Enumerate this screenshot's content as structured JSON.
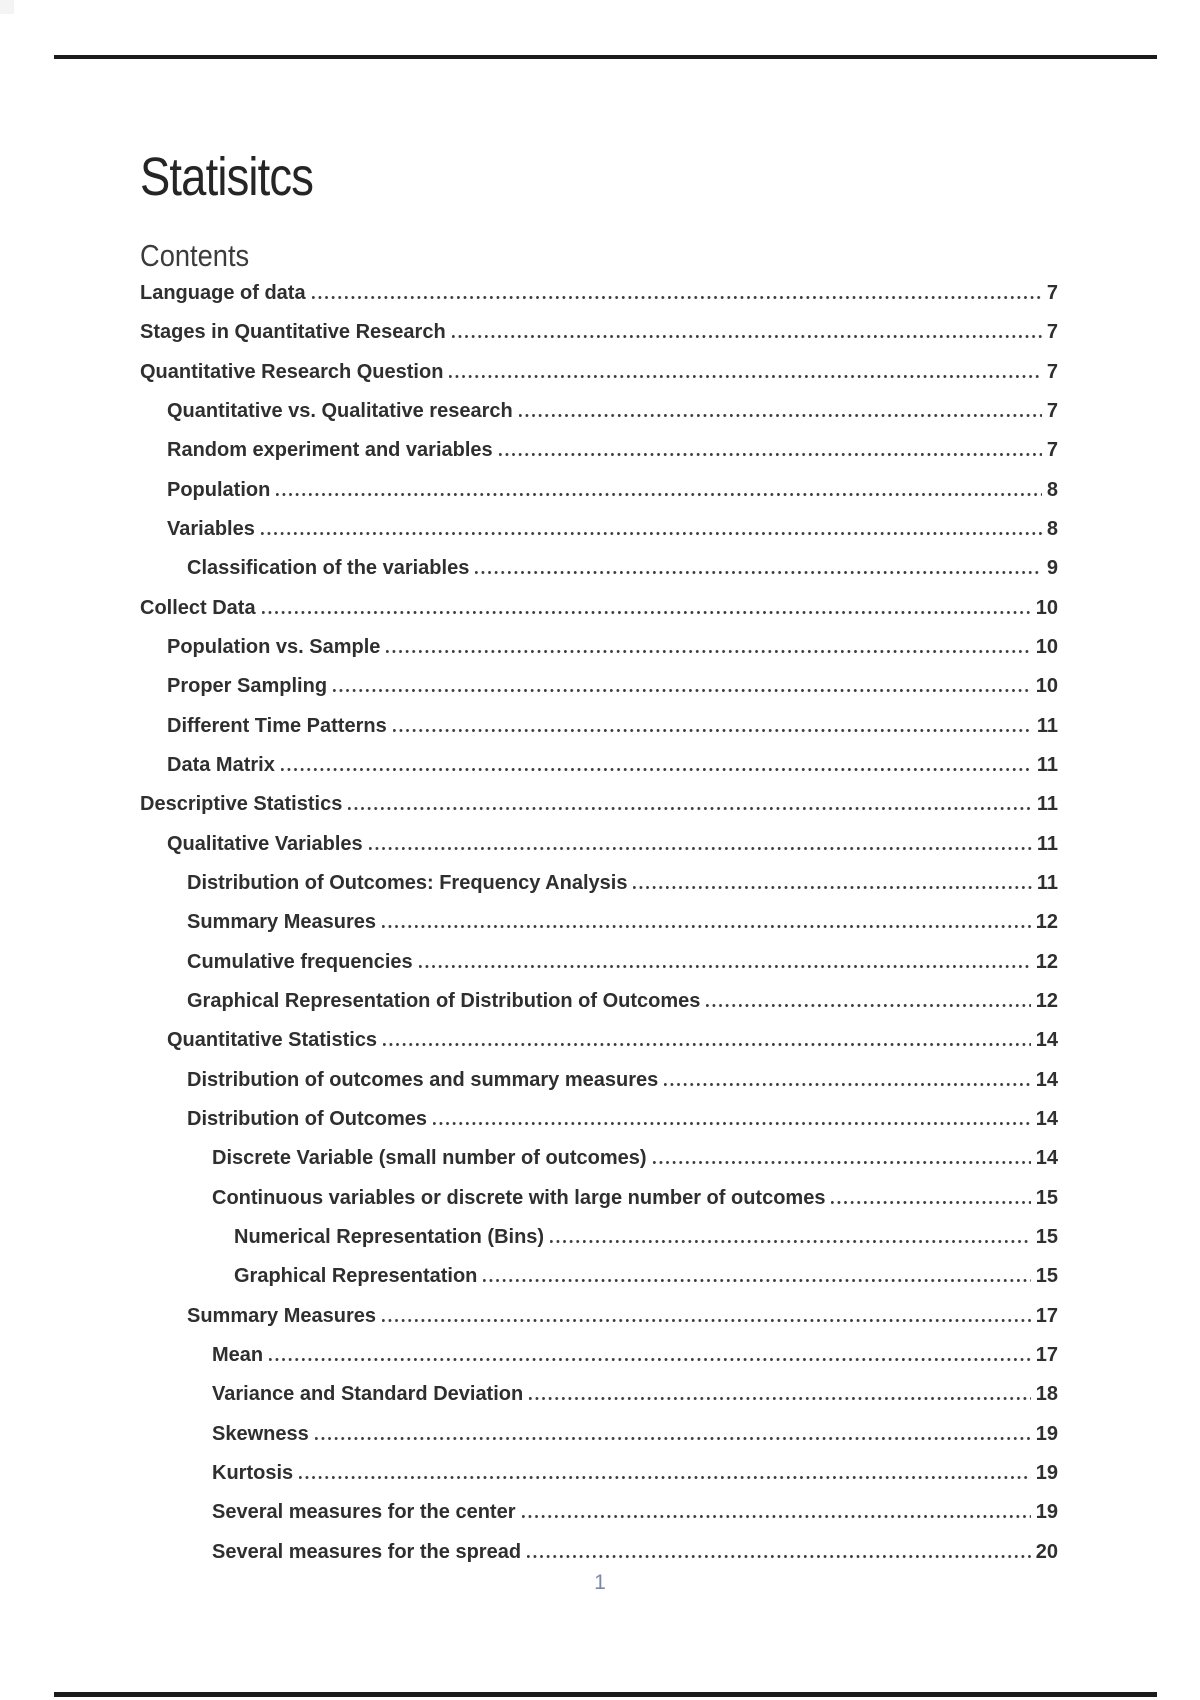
{
  "document": {
    "title": "Statisitcs",
    "contents_heading": "Contents",
    "footer_page_number": "1"
  },
  "colors": {
    "body_text": "#2f2f2f",
    "title_text": "#252525",
    "heading_text": "#3c3c3c",
    "rule": "#1b1b1d",
    "leader_dots": "#3c3c3c",
    "footer_page_number": "#7d87ae",
    "page_background": "#ffffff"
  },
  "toc": {
    "entries": [
      {
        "label": "Language of data",
        "page": "7",
        "level": 1
      },
      {
        "label": "Stages in Quantitative Research",
        "page": "7",
        "level": 1
      },
      {
        "label": "Quantitative Research Question",
        "page": "7",
        "level": 1
      },
      {
        "label": "Quantitative vs. Qualitative research",
        "page": "7",
        "level": 2
      },
      {
        "label": "Random experiment and variables",
        "page": "7",
        "level": 2
      },
      {
        "label": "Population",
        "page": "8",
        "level": 2
      },
      {
        "label": "Variables",
        "page": "8",
        "level": 2
      },
      {
        "label": "Classification of the variables",
        "page": "9",
        "level": 3
      },
      {
        "label": "Collect Data",
        "page": "10",
        "level": 1
      },
      {
        "label": "Population vs. Sample",
        "page": "10",
        "level": 2
      },
      {
        "label": "Proper Sampling",
        "page": "10",
        "level": 2
      },
      {
        "label": "Different Time Patterns",
        "page": "11",
        "level": 2
      },
      {
        "label": "Data Matrix",
        "page": "11",
        "level": 2
      },
      {
        "label": "Descriptive Statistics",
        "page": "11",
        "level": 1
      },
      {
        "label": "Qualitative Variables",
        "page": "11",
        "level": 2
      },
      {
        "label": "Distribution of Outcomes: Frequency Analysis",
        "page": "11",
        "level": 3
      },
      {
        "label": "Summary Measures",
        "page": "12",
        "level": 3
      },
      {
        "label": "Cumulative frequencies",
        "page": "12",
        "level": 3
      },
      {
        "label": "Graphical Representation of Distribution of Outcomes",
        "page": "12",
        "level": 3
      },
      {
        "label": "Quantitative Statistics",
        "page": "14",
        "level": 2
      },
      {
        "label": "Distribution of outcomes and summary measures",
        "page": "14",
        "level": 3
      },
      {
        "label": "Distribution of Outcomes",
        "page": "14",
        "level": 3
      },
      {
        "label": "Discrete Variable (small number of outcomes)",
        "page": "14",
        "level": 4
      },
      {
        "label": "Continuous variables or discrete with large number of outcomes",
        "page": "15",
        "level": 4
      },
      {
        "label": "Numerical Representation (Bins)",
        "page": "15",
        "level": 5
      },
      {
        "label": "Graphical Representation",
        "page": "15",
        "level": 5
      },
      {
        "label": "Summary Measures",
        "page": "17",
        "level": 3
      },
      {
        "label": "Mean",
        "page": "17",
        "level": 4
      },
      {
        "label": "Variance and Standard Deviation",
        "page": "18",
        "level": 4
      },
      {
        "label": "Skewness",
        "page": "19",
        "level": 4
      },
      {
        "label": "Kurtosis",
        "page": "19",
        "level": 4
      },
      {
        "label": "Several measures for the center",
        "page": "19",
        "level": 4
      },
      {
        "label": "Several measures for the spread",
        "page": "20",
        "level": 4
      }
    ]
  }
}
